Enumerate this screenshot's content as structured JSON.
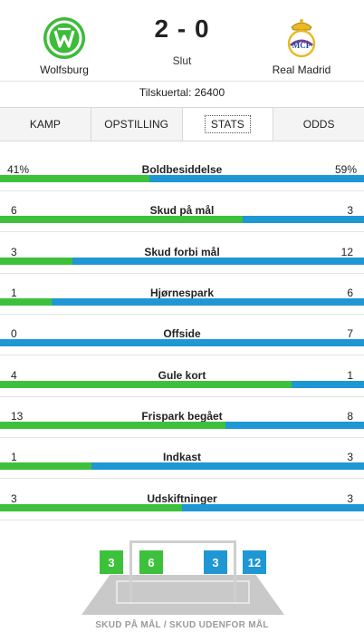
{
  "match": {
    "home_team": "Wolfsburg",
    "away_team": "Real Madrid",
    "score": "2 - 0",
    "status": "Slut",
    "attendance": "Tilskuertal: 26400",
    "home_color": "#3dc13c",
    "away_color": "#1f97d4"
  },
  "tabs": [
    {
      "label": "KAMP",
      "active": false
    },
    {
      "label": "OPSTILLING",
      "active": false
    },
    {
      "label": "STATS",
      "active": true
    },
    {
      "label": "ODDS",
      "active": false
    }
  ],
  "stats": [
    {
      "label": "Boldbesiddelse",
      "home": "41%",
      "away": "59%",
      "home_share": 0.41
    },
    {
      "label": "Skud på mål",
      "home": "6",
      "away": "3",
      "home_share": 0.667
    },
    {
      "label": "Skud forbi mål",
      "home": "3",
      "away": "12",
      "home_share": 0.2
    },
    {
      "label": "Hjørnespark",
      "home": "1",
      "away": "6",
      "home_share": 0.143
    },
    {
      "label": "Offside",
      "home": "0",
      "away": "7",
      "home_share": 0.0
    },
    {
      "label": "Gule kort",
      "home": "4",
      "away": "1",
      "home_share": 0.8
    },
    {
      "label": "Frispark begået",
      "home": "13",
      "away": "8",
      "home_share": 0.619
    },
    {
      "label": "Indkast",
      "home": "1",
      "away": "3",
      "home_share": 0.25
    },
    {
      "label": "Udskiftninger",
      "home": "3",
      "away": "3",
      "home_share": 0.5
    }
  ],
  "shots": {
    "home_off": "3",
    "home_on": "6",
    "away_on": "3",
    "away_off": "12",
    "caption": "SKUD PÅ MÅL / SKUD UDENFOR MÅL"
  }
}
